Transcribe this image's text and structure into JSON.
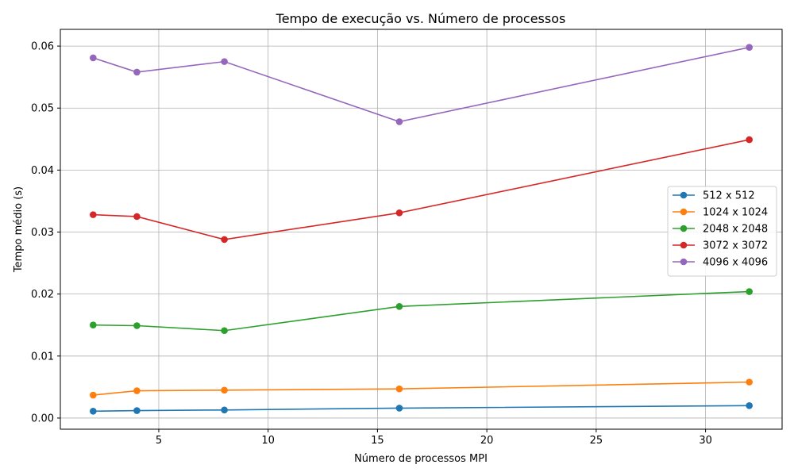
{
  "chart_data": {
    "type": "line",
    "title": "Tempo de execução vs. Número de processos",
    "xlabel": "Número de processos MPI",
    "ylabel": "Tempo médio (s)",
    "x": [
      2,
      4,
      8,
      16,
      32
    ],
    "xlim": [
      0.5,
      33.5
    ],
    "ylim": [
      -0.0018,
      0.0627
    ],
    "xticks": [
      5,
      10,
      15,
      20,
      25,
      30
    ],
    "xtick_labels": [
      "5",
      "10",
      "15",
      "20",
      "25",
      "30"
    ],
    "yticks": [
      0.0,
      0.01,
      0.02,
      0.03,
      0.04,
      0.05,
      0.06
    ],
    "ytick_labels": [
      "0.00",
      "0.01",
      "0.02",
      "0.03",
      "0.04",
      "0.05",
      "0.06"
    ],
    "grid": true,
    "legend_position": "center-right",
    "markers": "circle",
    "series": [
      {
        "name": "512 x 512",
        "color": "#1f77b4",
        "values": [
          0.0011,
          0.0012,
          0.0013,
          0.0016,
          0.002
        ]
      },
      {
        "name": "1024 x 1024",
        "color": "#ff7f0e",
        "values": [
          0.0037,
          0.0044,
          0.0045,
          0.0047,
          0.0058
        ]
      },
      {
        "name": "2048 x 2048",
        "color": "#2ca02c",
        "values": [
          0.015,
          0.0149,
          0.0141,
          0.018,
          0.0204
        ]
      },
      {
        "name": "3072 x 3072",
        "color": "#d62728",
        "values": [
          0.0328,
          0.0325,
          0.0288,
          0.0331,
          0.0449
        ]
      },
      {
        "name": "4096 x 4096",
        "color": "#9467bd",
        "values": [
          0.0581,
          0.0558,
          0.0575,
          0.0478,
          0.0598
        ]
      }
    ]
  }
}
